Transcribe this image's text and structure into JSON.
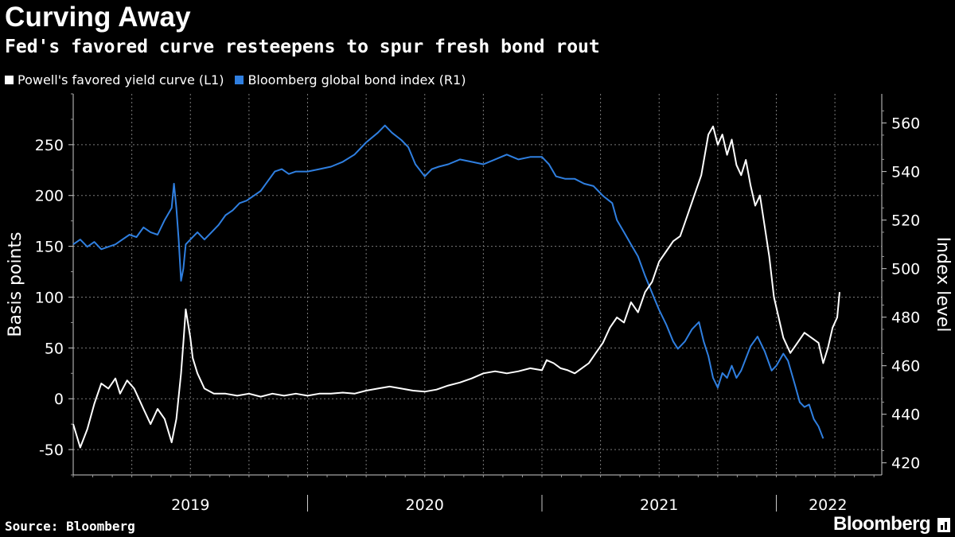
{
  "title": "Curving Away",
  "subtitle": "Fed's favored curve resteepens to spur fresh bond rout",
  "legend": [
    {
      "label": "Powell's favored yield curve (L1)",
      "color": "#ffffff"
    },
    {
      "label": "Bloomberg global bond index (R1)",
      "color": "#2f7fe0"
    }
  ],
  "source": "Source: Bloomberg",
  "brand": "Bloomberg",
  "chart_data": {
    "type": "line",
    "x_domain": [
      2019.0,
      2022.45
    ],
    "y_left": {
      "label": "Basis points",
      "range": [
        -75,
        300
      ],
      "ticks": [
        -50,
        0,
        50,
        100,
        150,
        200,
        250
      ]
    },
    "y_right": {
      "label": "Index level",
      "range": [
        415,
        572
      ],
      "ticks": [
        420,
        440,
        460,
        480,
        500,
        520,
        540,
        560
      ]
    },
    "x_ticks": [
      {
        "label": "2019",
        "center": 2019.5
      },
      {
        "label": "2020",
        "center": 2020.5
      },
      {
        "label": "2021",
        "center": 2021.5
      },
      {
        "label": "2022",
        "center": 2022.22
      }
    ],
    "x_separators": [
      2020.0,
      2021.0,
      2022.0
    ],
    "x_grid": [
      2019.0,
      2019.25,
      2019.5,
      2019.75,
      2020.0,
      2020.25,
      2020.5,
      2020.75,
      2021.0,
      2021.25,
      2021.5,
      2021.75,
      2022.0,
      2022.25
    ],
    "series": [
      {
        "name": "Powell's favored yield curve",
        "axis": "left",
        "color": "#ffffff",
        "points": [
          [
            2019.0,
            -25
          ],
          [
            2019.03,
            -48
          ],
          [
            2019.06,
            -30
          ],
          [
            2019.09,
            -5
          ],
          [
            2019.12,
            15
          ],
          [
            2019.15,
            10
          ],
          [
            2019.18,
            20
          ],
          [
            2019.2,
            5
          ],
          [
            2019.23,
            18
          ],
          [
            2019.26,
            10
          ],
          [
            2019.28,
            0
          ],
          [
            2019.3,
            -10
          ],
          [
            2019.33,
            -25
          ],
          [
            2019.36,
            -10
          ],
          [
            2019.39,
            -20
          ],
          [
            2019.42,
            -43
          ],
          [
            2019.44,
            -20
          ],
          [
            2019.46,
            25
          ],
          [
            2019.47,
            55
          ],
          [
            2019.48,
            88
          ],
          [
            2019.5,
            60
          ],
          [
            2019.51,
            40
          ],
          [
            2019.53,
            25
          ],
          [
            2019.56,
            10
          ],
          [
            2019.6,
            5
          ],
          [
            2019.65,
            5
          ],
          [
            2019.7,
            3
          ],
          [
            2019.75,
            5
          ],
          [
            2019.8,
            2
          ],
          [
            2019.85,
            5
          ],
          [
            2019.9,
            3
          ],
          [
            2019.95,
            5
          ],
          [
            2020.0,
            3
          ],
          [
            2020.05,
            5
          ],
          [
            2020.1,
            5
          ],
          [
            2020.15,
            6
          ],
          [
            2020.2,
            5
          ],
          [
            2020.25,
            8
          ],
          [
            2020.3,
            10
          ],
          [
            2020.35,
            12
          ],
          [
            2020.4,
            10
          ],
          [
            2020.45,
            8
          ],
          [
            2020.5,
            7
          ],
          [
            2020.55,
            9
          ],
          [
            2020.6,
            13
          ],
          [
            2020.65,
            16
          ],
          [
            2020.7,
            20
          ],
          [
            2020.75,
            25
          ],
          [
            2020.8,
            27
          ],
          [
            2020.85,
            25
          ],
          [
            2020.9,
            27
          ],
          [
            2020.95,
            30
          ],
          [
            2021.0,
            28
          ],
          [
            2021.02,
            38
          ],
          [
            2021.05,
            35
          ],
          [
            2021.08,
            30
          ],
          [
            2021.11,
            28
          ],
          [
            2021.14,
            25
          ],
          [
            2021.17,
            30
          ],
          [
            2021.2,
            35
          ],
          [
            2021.23,
            45
          ],
          [
            2021.26,
            55
          ],
          [
            2021.29,
            70
          ],
          [
            2021.32,
            80
          ],
          [
            2021.35,
            75
          ],
          [
            2021.38,
            95
          ],
          [
            2021.41,
            85
          ],
          [
            2021.44,
            105
          ],
          [
            2021.47,
            115
          ],
          [
            2021.5,
            135
          ],
          [
            2021.53,
            145
          ],
          [
            2021.56,
            155
          ],
          [
            2021.59,
            160
          ],
          [
            2021.62,
            180
          ],
          [
            2021.65,
            200
          ],
          [
            2021.68,
            220
          ],
          [
            2021.71,
            260
          ],
          [
            2021.73,
            268
          ],
          [
            2021.75,
            250
          ],
          [
            2021.77,
            260
          ],
          [
            2021.79,
            240
          ],
          [
            2021.81,
            255
          ],
          [
            2021.83,
            230
          ],
          [
            2021.85,
            220
          ],
          [
            2021.87,
            235
          ],
          [
            2021.89,
            210
          ],
          [
            2021.91,
            190
          ],
          [
            2021.93,
            200
          ],
          [
            2021.95,
            170
          ],
          [
            2021.97,
            140
          ],
          [
            2021.99,
            100
          ],
          [
            2022.01,
            80
          ],
          [
            2022.03,
            60
          ],
          [
            2022.06,
            45
          ],
          [
            2022.09,
            55
          ],
          [
            2022.12,
            65
          ],
          [
            2022.15,
            60
          ],
          [
            2022.18,
            55
          ],
          [
            2022.2,
            35
          ],
          [
            2022.22,
            50
          ],
          [
            2022.24,
            70
          ],
          [
            2022.26,
            80
          ],
          [
            2022.27,
            105
          ]
        ]
      },
      {
        "name": "Bloomberg global bond index",
        "axis": "right",
        "color": "#2f7fe0",
        "points": [
          [
            2019.0,
            510
          ],
          [
            2019.03,
            512
          ],
          [
            2019.06,
            509
          ],
          [
            2019.09,
            511
          ],
          [
            2019.12,
            508
          ],
          [
            2019.15,
            509
          ],
          [
            2019.18,
            510
          ],
          [
            2019.21,
            512
          ],
          [
            2019.24,
            514
          ],
          [
            2019.27,
            513
          ],
          [
            2019.3,
            517
          ],
          [
            2019.33,
            515
          ],
          [
            2019.36,
            514
          ],
          [
            2019.39,
            520
          ],
          [
            2019.42,
            525
          ],
          [
            2019.43,
            535
          ],
          [
            2019.44,
            525
          ],
          [
            2019.45,
            512
          ],
          [
            2019.46,
            495
          ],
          [
            2019.47,
            500
          ],
          [
            2019.48,
            510
          ],
          [
            2019.5,
            512
          ],
          [
            2019.53,
            515
          ],
          [
            2019.56,
            512
          ],
          [
            2019.59,
            515
          ],
          [
            2019.62,
            518
          ],
          [
            2019.65,
            522
          ],
          [
            2019.68,
            524
          ],
          [
            2019.71,
            527
          ],
          [
            2019.74,
            528
          ],
          [
            2019.77,
            530
          ],
          [
            2019.8,
            532
          ],
          [
            2019.83,
            536
          ],
          [
            2019.86,
            540
          ],
          [
            2019.89,
            541
          ],
          [
            2019.92,
            539
          ],
          [
            2019.95,
            540
          ],
          [
            2020.0,
            540
          ],
          [
            2020.05,
            541
          ],
          [
            2020.1,
            542
          ],
          [
            2020.15,
            544
          ],
          [
            2020.2,
            547
          ],
          [
            2020.25,
            552
          ],
          [
            2020.3,
            556
          ],
          [
            2020.33,
            559
          ],
          [
            2020.36,
            556
          ],
          [
            2020.4,
            553
          ],
          [
            2020.43,
            550
          ],
          [
            2020.46,
            543
          ],
          [
            2020.5,
            538
          ],
          [
            2020.53,
            541
          ],
          [
            2020.56,
            542
          ],
          [
            2020.6,
            543
          ],
          [
            2020.65,
            545
          ],
          [
            2020.7,
            544
          ],
          [
            2020.75,
            543
          ],
          [
            2020.8,
            545
          ],
          [
            2020.85,
            547
          ],
          [
            2020.9,
            545
          ],
          [
            2020.95,
            546
          ],
          [
            2021.0,
            546
          ],
          [
            2021.03,
            543
          ],
          [
            2021.06,
            538
          ],
          [
            2021.1,
            537
          ],
          [
            2021.14,
            537
          ],
          [
            2021.18,
            535
          ],
          [
            2021.22,
            534
          ],
          [
            2021.26,
            530
          ],
          [
            2021.3,
            527
          ],
          [
            2021.32,
            520
          ],
          [
            2021.35,
            515
          ],
          [
            2021.38,
            510
          ],
          [
            2021.41,
            505
          ],
          [
            2021.44,
            497
          ],
          [
            2021.47,
            490
          ],
          [
            2021.5,
            483
          ],
          [
            2021.53,
            477
          ],
          [
            2021.56,
            470
          ],
          [
            2021.58,
            467
          ],
          [
            2021.61,
            470
          ],
          [
            2021.64,
            475
          ],
          [
            2021.67,
            478
          ],
          [
            2021.69,
            470
          ],
          [
            2021.71,
            464
          ],
          [
            2021.73,
            455
          ],
          [
            2021.75,
            451
          ],
          [
            2021.77,
            457
          ],
          [
            2021.79,
            455
          ],
          [
            2021.81,
            460
          ],
          [
            2021.83,
            455
          ],
          [
            2021.85,
            458
          ],
          [
            2021.87,
            463
          ],
          [
            2021.89,
            468
          ],
          [
            2021.92,
            472
          ],
          [
            2021.95,
            466
          ],
          [
            2021.98,
            458
          ],
          [
            2022.0,
            460
          ],
          [
            2022.03,
            465
          ],
          [
            2022.05,
            462
          ],
          [
            2022.08,
            452
          ],
          [
            2022.1,
            445
          ],
          [
            2022.12,
            443
          ],
          [
            2022.14,
            444
          ],
          [
            2022.16,
            438
          ],
          [
            2022.18,
            435
          ],
          [
            2022.2,
            430
          ]
        ]
      }
    ]
  }
}
